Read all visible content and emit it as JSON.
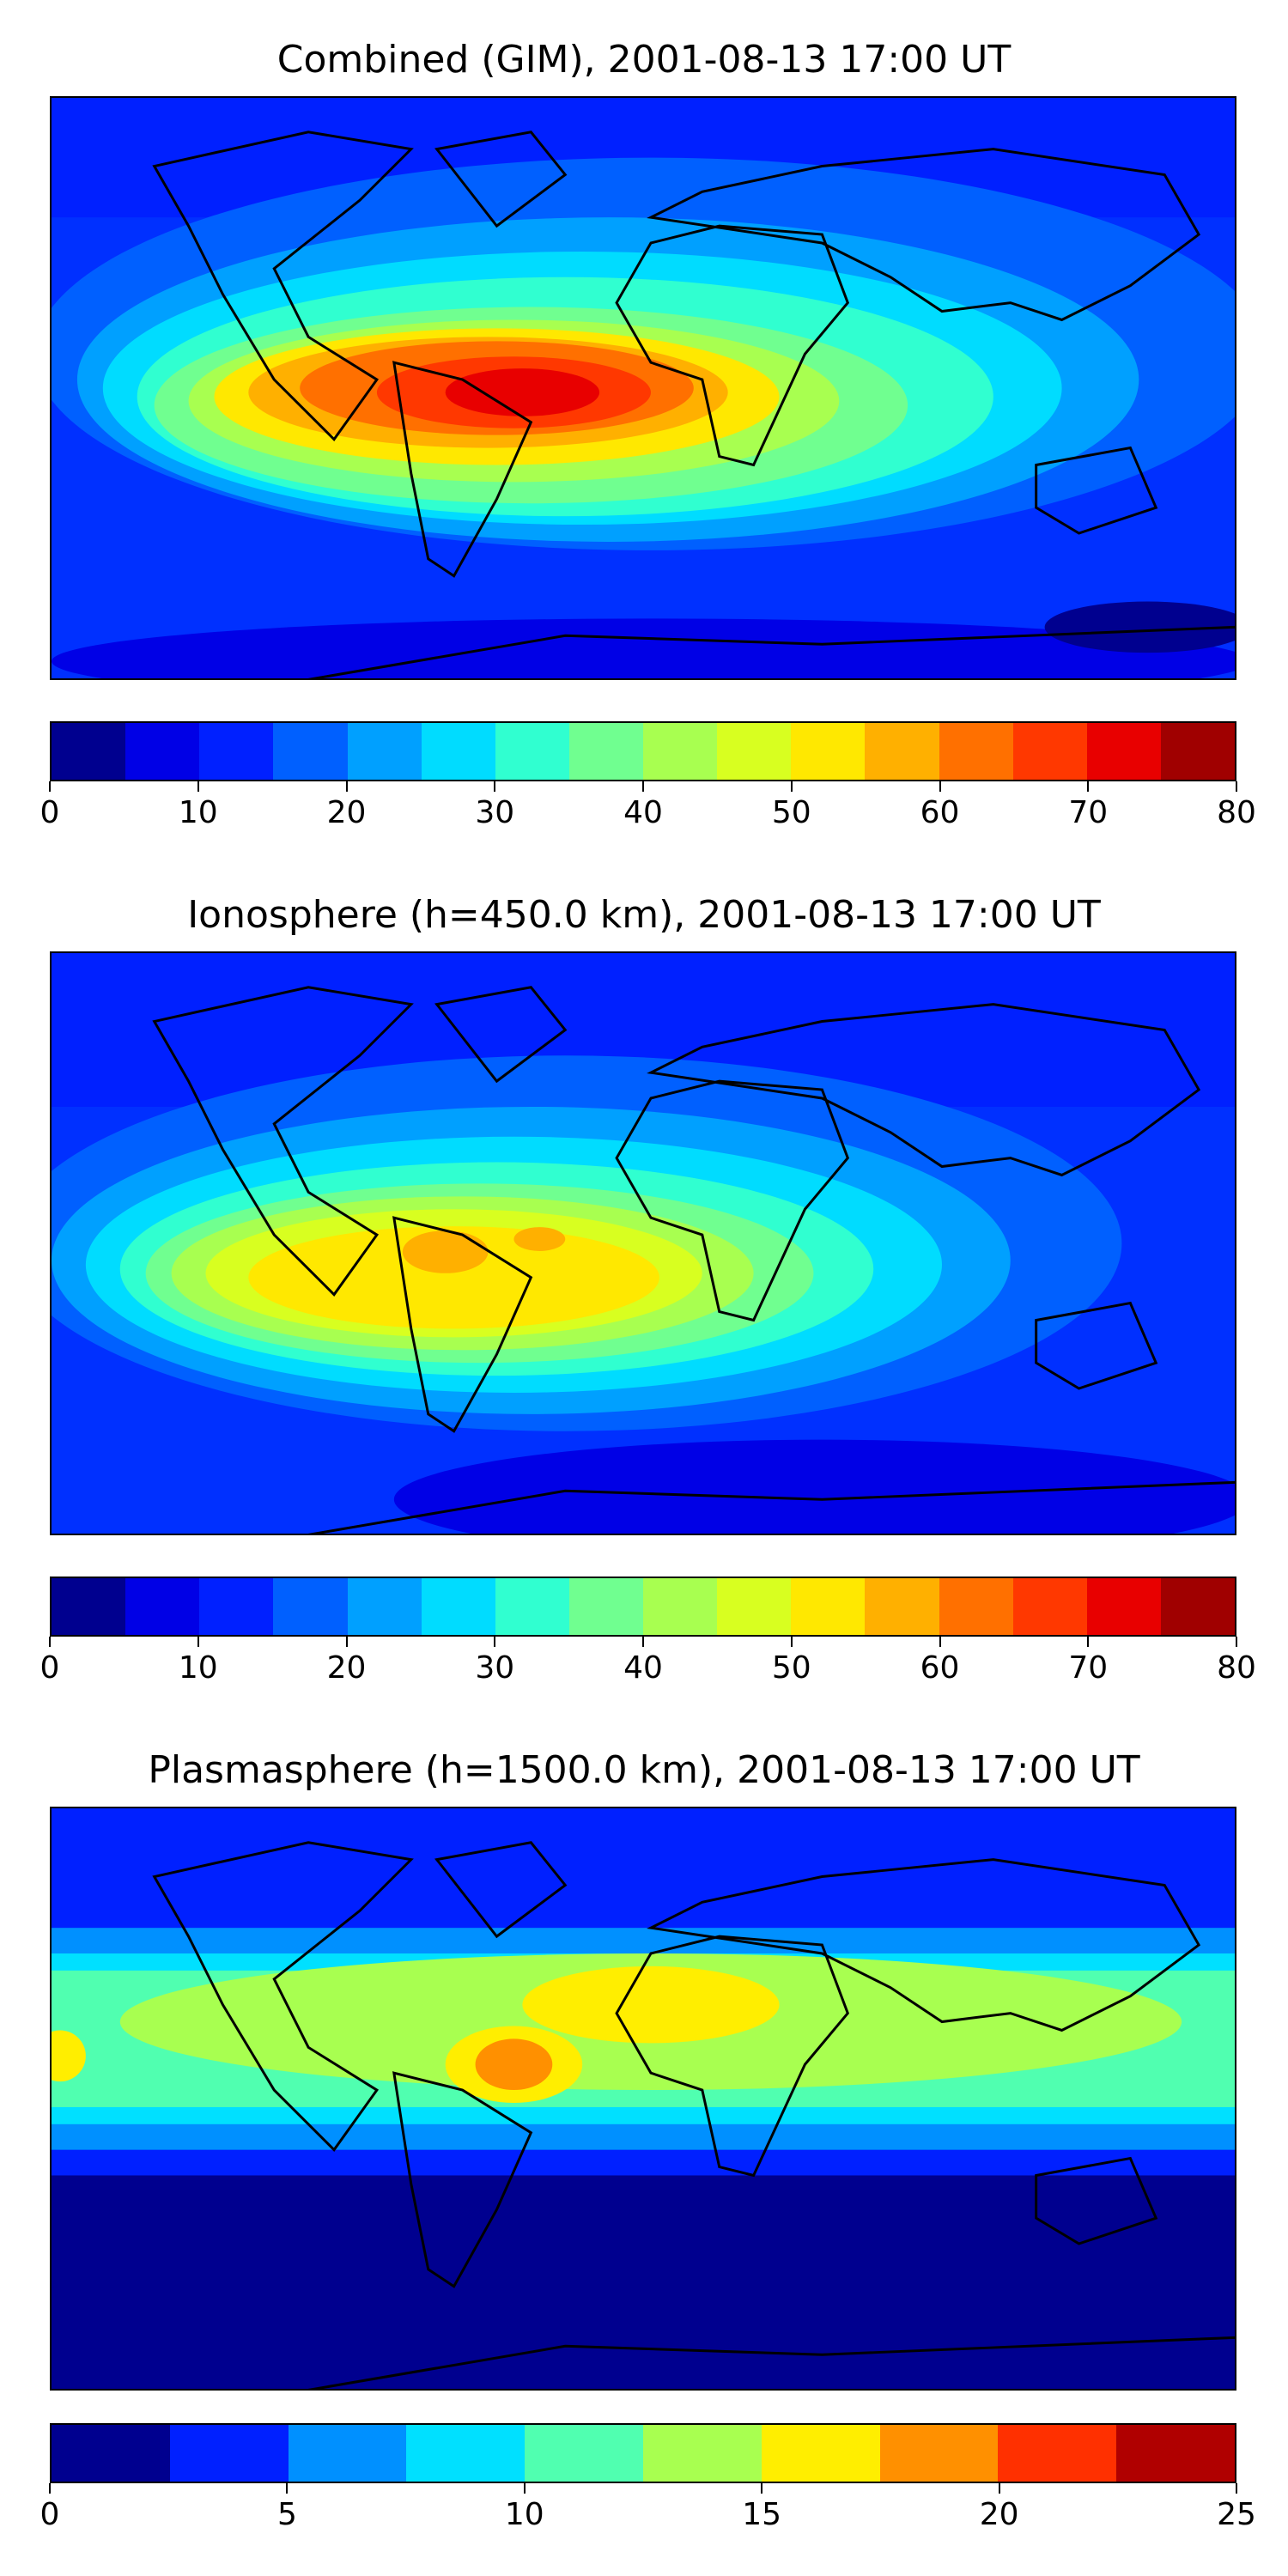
{
  "panels": [
    {
      "title": "Combined (GIM), 2001-08-13 17:00 UT",
      "colorbar": {
        "colors": [
          "#00008f",
          "#0000e6",
          "#0020ff",
          "#0060ff",
          "#00a0ff",
          "#00dcff",
          "#30ffd0",
          "#70ff90",
          "#a8ff50",
          "#d8ff20",
          "#ffe800",
          "#ffb000",
          "#ff7000",
          "#ff3800",
          "#e80000",
          "#a00000"
        ],
        "tick_labels": [
          "0",
          "10",
          "20",
          "30",
          "40",
          "50",
          "60",
          "70",
          "80"
        ]
      }
    },
    {
      "title": "Ionosphere  (h=450.0 km), 2001-08-13 17:00 UT",
      "colorbar": {
        "colors": [
          "#00008f",
          "#0000e6",
          "#0020ff",
          "#0060ff",
          "#00a0ff",
          "#00dcff",
          "#30ffd0",
          "#70ff90",
          "#a8ff50",
          "#d8ff20",
          "#ffe800",
          "#ffb000",
          "#ff7000",
          "#ff3800",
          "#e80000",
          "#a00000"
        ],
        "tick_labels": [
          "0",
          "10",
          "20",
          "30",
          "40",
          "50",
          "60",
          "70",
          "80"
        ]
      }
    },
    {
      "title": "Plasmasphere (h=1500.0 km), 2001-08-13 17:00 UT",
      "colorbar": {
        "colors": [
          "#00008f",
          "#0020ff",
          "#0090ff",
          "#00e0ff",
          "#50ffb0",
          "#a8ff50",
          "#ffee00",
          "#ff9000",
          "#ff3000",
          "#b00000"
        ],
        "tick_labels": [
          "0",
          "5",
          "10",
          "15",
          "20",
          "25"
        ]
      }
    }
  ]
}
